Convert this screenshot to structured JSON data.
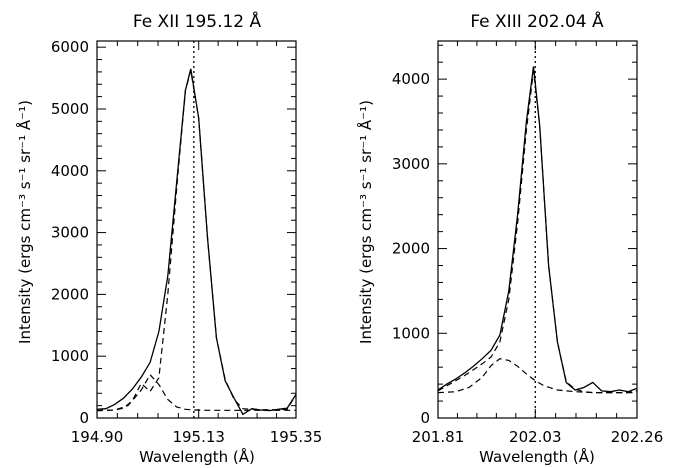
{
  "chart_data": [
    {
      "type": "line",
      "title": "Fe XII 195.12 Å",
      "xlabel": "Wavelength (Å)",
      "ylabel": "Intensity (ergs cm⁻³ s⁻¹ sr⁻¹ Å⁻¹)",
      "xlim": [
        194.9,
        195.35
      ],
      "ylim": [
        0,
        6100
      ],
      "xticks": [
        194.9,
        195.13,
        195.35
      ],
      "xtick_labels": [
        "194.90",
        "195.13",
        "195.35"
      ],
      "yticks": [
        0,
        1000,
        2000,
        3000,
        4000,
        5000,
        6000
      ],
      "ytick_labels": [
        "0",
        "1000",
        "2000",
        "3000",
        "4000",
        "5000",
        "6000"
      ],
      "vline": 195.119,
      "series": [
        {
          "style": "solid",
          "x": [
            194.9,
            194.92,
            194.94,
            194.96,
            194.98,
            195.0,
            195.02,
            195.04,
            195.06,
            195.08,
            195.1,
            195.112,
            195.13,
            195.15,
            195.17,
            195.19,
            195.21,
            195.23,
            195.25,
            195.27,
            195.29,
            195.31,
            195.33,
            195.35
          ],
          "y": [
            140,
            150,
            220,
            320,
            470,
            660,
            900,
            1400,
            2300,
            3800,
            5300,
            5650,
            4850,
            2900,
            1300,
            600,
            320,
            60,
            150,
            130,
            120,
            140,
            160,
            380
          ]
        },
        {
          "style": "dashed",
          "x": [
            194.9,
            194.92,
            194.94,
            194.96,
            194.98,
            195.0,
            195.02,
            195.04,
            195.06,
            195.08,
            195.1,
            195.112,
            195.13,
            195.15,
            195.17,
            195.19,
            195.21,
            195.23,
            195.25,
            195.27,
            195.29,
            195.31,
            195.33,
            195.35
          ],
          "y": [
            120,
            125,
            130,
            160,
            280,
            560,
            430,
            650,
            2000,
            3700,
            5300,
            5620,
            4850,
            2900,
            1300,
            620,
            300,
            150,
            140,
            135,
            135,
            135,
            140,
            380
          ]
        },
        {
          "style": "dashed",
          "x": [
            194.9,
            194.94,
            194.97,
            195.0,
            195.02,
            195.04,
            195.06,
            195.08,
            195.1,
            195.12,
            195.15,
            195.2,
            195.25,
            195.3,
            195.35
          ],
          "y": [
            120,
            130,
            200,
            450,
            700,
            540,
            300,
            180,
            140,
            130,
            125,
            125,
            125,
            125,
            125
          ]
        }
      ]
    },
    {
      "type": "line",
      "title": "Fe XIII 202.04 Å",
      "xlabel": "Wavelength (Å)",
      "ylabel": "Intensity (ergs cm⁻³ s⁻¹ sr⁻¹ Å⁻¹)",
      "xlim": [
        201.81,
        202.26
      ],
      "ylim": [
        0,
        4450
      ],
      "xticks": [
        201.81,
        202.03,
        202.26
      ],
      "xtick_labels": [
        "201.81",
        "202.03",
        "202.26"
      ],
      "yticks": [
        0,
        1000,
        2000,
        3000,
        4000
      ],
      "ytick_labels": [
        "0",
        "1000",
        "2000",
        "3000",
        "4000"
      ],
      "vline": 202.03,
      "series": [
        {
          "style": "solid",
          "x": [
            201.81,
            201.83,
            201.85,
            201.87,
            201.89,
            201.91,
            201.93,
            201.95,
            201.97,
            201.99,
            202.01,
            202.026,
            202.04,
            202.06,
            202.08,
            202.1,
            202.12,
            202.14,
            202.16,
            202.18,
            202.2,
            202.22,
            202.24,
            202.26
          ],
          "y": [
            330,
            400,
            460,
            530,
            610,
            700,
            800,
            980,
            1500,
            2400,
            3500,
            4150,
            3450,
            1800,
            900,
            420,
            330,
            360,
            420,
            320,
            310,
            330,
            310,
            350
          ]
        },
        {
          "style": "dashed",
          "x": [
            201.81,
            201.83,
            201.85,
            201.87,
            201.89,
            201.91,
            201.93,
            201.95,
            201.97,
            201.99,
            202.01,
            202.026,
            202.04,
            202.06,
            202.08,
            202.1,
            202.12,
            202.14,
            202.16,
            202.18,
            202.2,
            202.22,
            202.24,
            202.26
          ],
          "y": [
            320,
            380,
            440,
            500,
            570,
            640,
            720,
            900,
            1400,
            2300,
            3400,
            4100,
            3450,
            1800,
            900,
            430,
            340,
            310,
            300,
            300,
            300,
            300,
            300,
            320
          ]
        },
        {
          "style": "dashed",
          "x": [
            201.81,
            201.85,
            201.88,
            201.91,
            201.93,
            201.95,
            201.97,
            201.99,
            202.01,
            202.03,
            202.05,
            202.08,
            202.12,
            202.16,
            202.2,
            202.26
          ],
          "y": [
            300,
            310,
            360,
            480,
            620,
            700,
            680,
            610,
            520,
            440,
            380,
            330,
            310,
            300,
            300,
            300
          ]
        }
      ]
    }
  ]
}
